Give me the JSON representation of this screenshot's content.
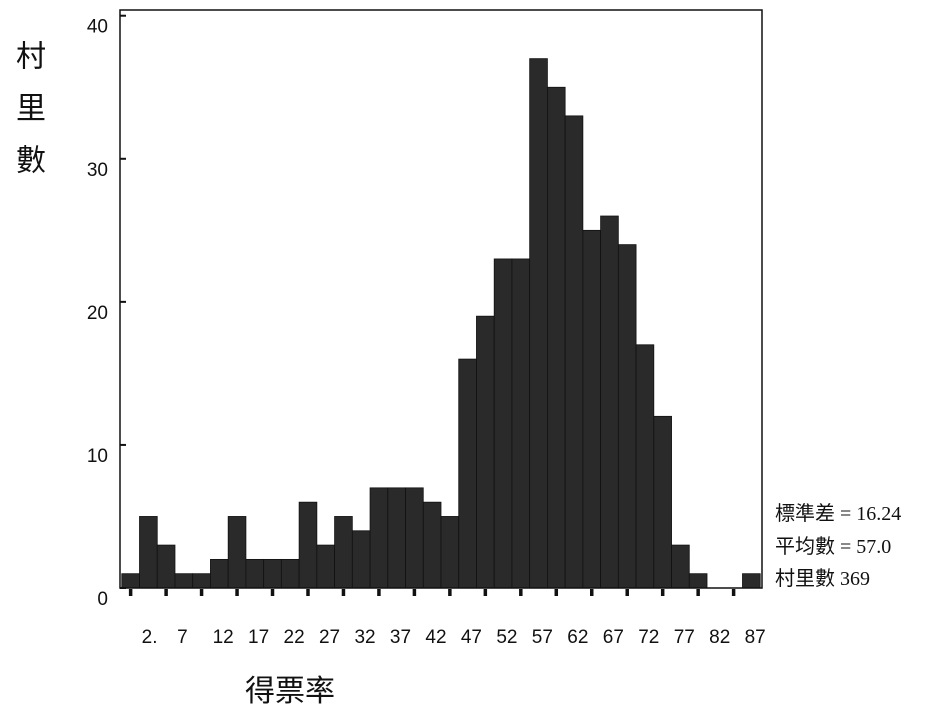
{
  "chart_data": {
    "type": "bar",
    "subtype": "histogram",
    "x": [
      2.5,
      5,
      7.5,
      10,
      12.5,
      15,
      17.5,
      20,
      22.5,
      25,
      27.5,
      30,
      32.5,
      35,
      37.5,
      40,
      42.5,
      45,
      47.5,
      50,
      52.5,
      55,
      57.5,
      60,
      62.5,
      65,
      67.5,
      70,
      72.5,
      75,
      77.5,
      80,
      82.5,
      85,
      87.5,
      90
    ],
    "values": [
      1,
      5,
      3,
      1,
      1,
      2,
      5,
      2,
      2,
      2,
      6,
      3,
      5,
      4,
      7,
      7,
      7,
      6,
      5,
      16,
      19,
      23,
      23,
      37,
      35,
      33,
      25,
      26,
      24,
      17,
      12,
      3,
      1,
      0,
      0,
      1
    ],
    "bin_width": 2.5,
    "xlabel": "得票率",
    "ylabel": "村里數",
    "xlim": [
      1,
      91.5
    ],
    "ylim": [
      0,
      40.4
    ],
    "yticks": [
      0,
      10,
      20,
      30,
      40
    ],
    "xticks": [
      2.5,
      7.5,
      12.5,
      17.5,
      22.5,
      27.5,
      32.5,
      37.5,
      42.5,
      47.5,
      52.5,
      57.5,
      62.5,
      67.5,
      72.5,
      77.5,
      82.5,
      87.5
    ],
    "xtick_labels": [
      "2.",
      "7",
      "12",
      "17",
      "22",
      "27",
      "32",
      "37",
      "42",
      "47",
      "52",
      "57",
      "62",
      "67",
      "72",
      "77",
      "82",
      "87"
    ],
    "grid": false,
    "legend": "none",
    "bar_color": "#2a2a2a",
    "annotations": [
      "標準差 = 16.24",
      "平均數 = 57.0",
      "村里數 369"
    ]
  }
}
